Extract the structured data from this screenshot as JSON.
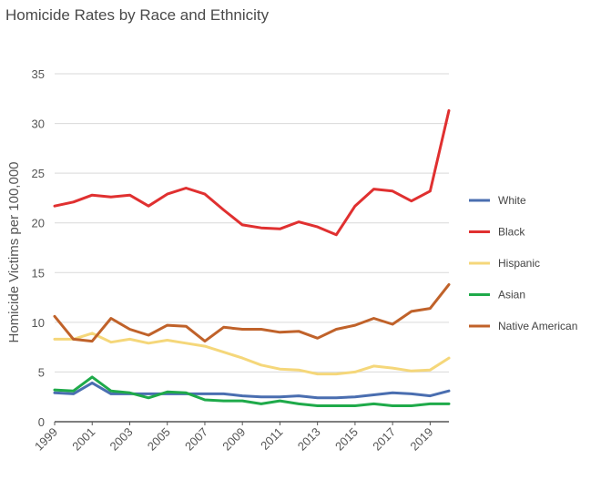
{
  "chart_data": {
    "type": "line",
    "title": "Homicide Rates by Race and Ethnicity",
    "xlabel": "",
    "ylabel": "Homicide Victims per 100,000",
    "x": [
      1999,
      2000,
      2001,
      2002,
      2003,
      2004,
      2005,
      2006,
      2007,
      2008,
      2009,
      2010,
      2011,
      2012,
      2013,
      2014,
      2015,
      2016,
      2017,
      2018,
      2019,
      2020
    ],
    "x_tick_labels": [
      "1999",
      "2001",
      "2003",
      "2005",
      "2007",
      "2009",
      "2011",
      "2013",
      "2015",
      "2017",
      "2019"
    ],
    "y_tick_labels": [
      "0",
      "5",
      "10",
      "15",
      "20",
      "25",
      "30",
      "35"
    ],
    "ylim": [
      0,
      35
    ],
    "grid": "horizontal",
    "legend_position": "right",
    "series": [
      {
        "name": "White",
        "color": "#4a6eb0",
        "values": [
          2.9,
          2.8,
          3.9,
          2.8,
          2.8,
          2.8,
          2.8,
          2.8,
          2.8,
          2.8,
          2.6,
          2.5,
          2.5,
          2.6,
          2.4,
          2.4,
          2.5,
          2.7,
          2.9,
          2.8,
          2.6,
          3.1
        ]
      },
      {
        "name": "Black",
        "color": "#e03030",
        "values": [
          21.7,
          22.1,
          22.8,
          22.6,
          22.8,
          21.7,
          22.9,
          23.5,
          22.9,
          21.3,
          19.8,
          19.5,
          19.4,
          20.1,
          19.6,
          18.8,
          21.7,
          23.4,
          23.2,
          22.2,
          23.2,
          31.3
        ]
      },
      {
        "name": "Hispanic",
        "color": "#f5d77a",
        "values": [
          8.3,
          8.3,
          8.9,
          8.0,
          8.3,
          7.9,
          8.2,
          7.9,
          7.6,
          7.0,
          6.4,
          5.7,
          5.3,
          5.2,
          4.8,
          4.8,
          5.0,
          5.6,
          5.4,
          5.1,
          5.2,
          6.4
        ]
      },
      {
        "name": "Asian",
        "color": "#1faa4a",
        "values": [
          3.2,
          3.1,
          4.5,
          3.1,
          2.9,
          2.4,
          3.0,
          2.9,
          2.2,
          2.1,
          2.1,
          1.8,
          2.1,
          1.8,
          1.6,
          1.6,
          1.6,
          1.8,
          1.6,
          1.6,
          1.8,
          1.8
        ]
      },
      {
        "name": "Native American",
        "color": "#c0622a",
        "values": [
          10.6,
          8.3,
          8.1,
          10.4,
          9.3,
          8.7,
          9.7,
          9.6,
          8.1,
          9.5,
          9.3,
          9.3,
          9.0,
          9.1,
          8.4,
          9.3,
          9.7,
          10.4,
          9.8,
          11.1,
          11.4,
          13.8
        ]
      }
    ]
  }
}
